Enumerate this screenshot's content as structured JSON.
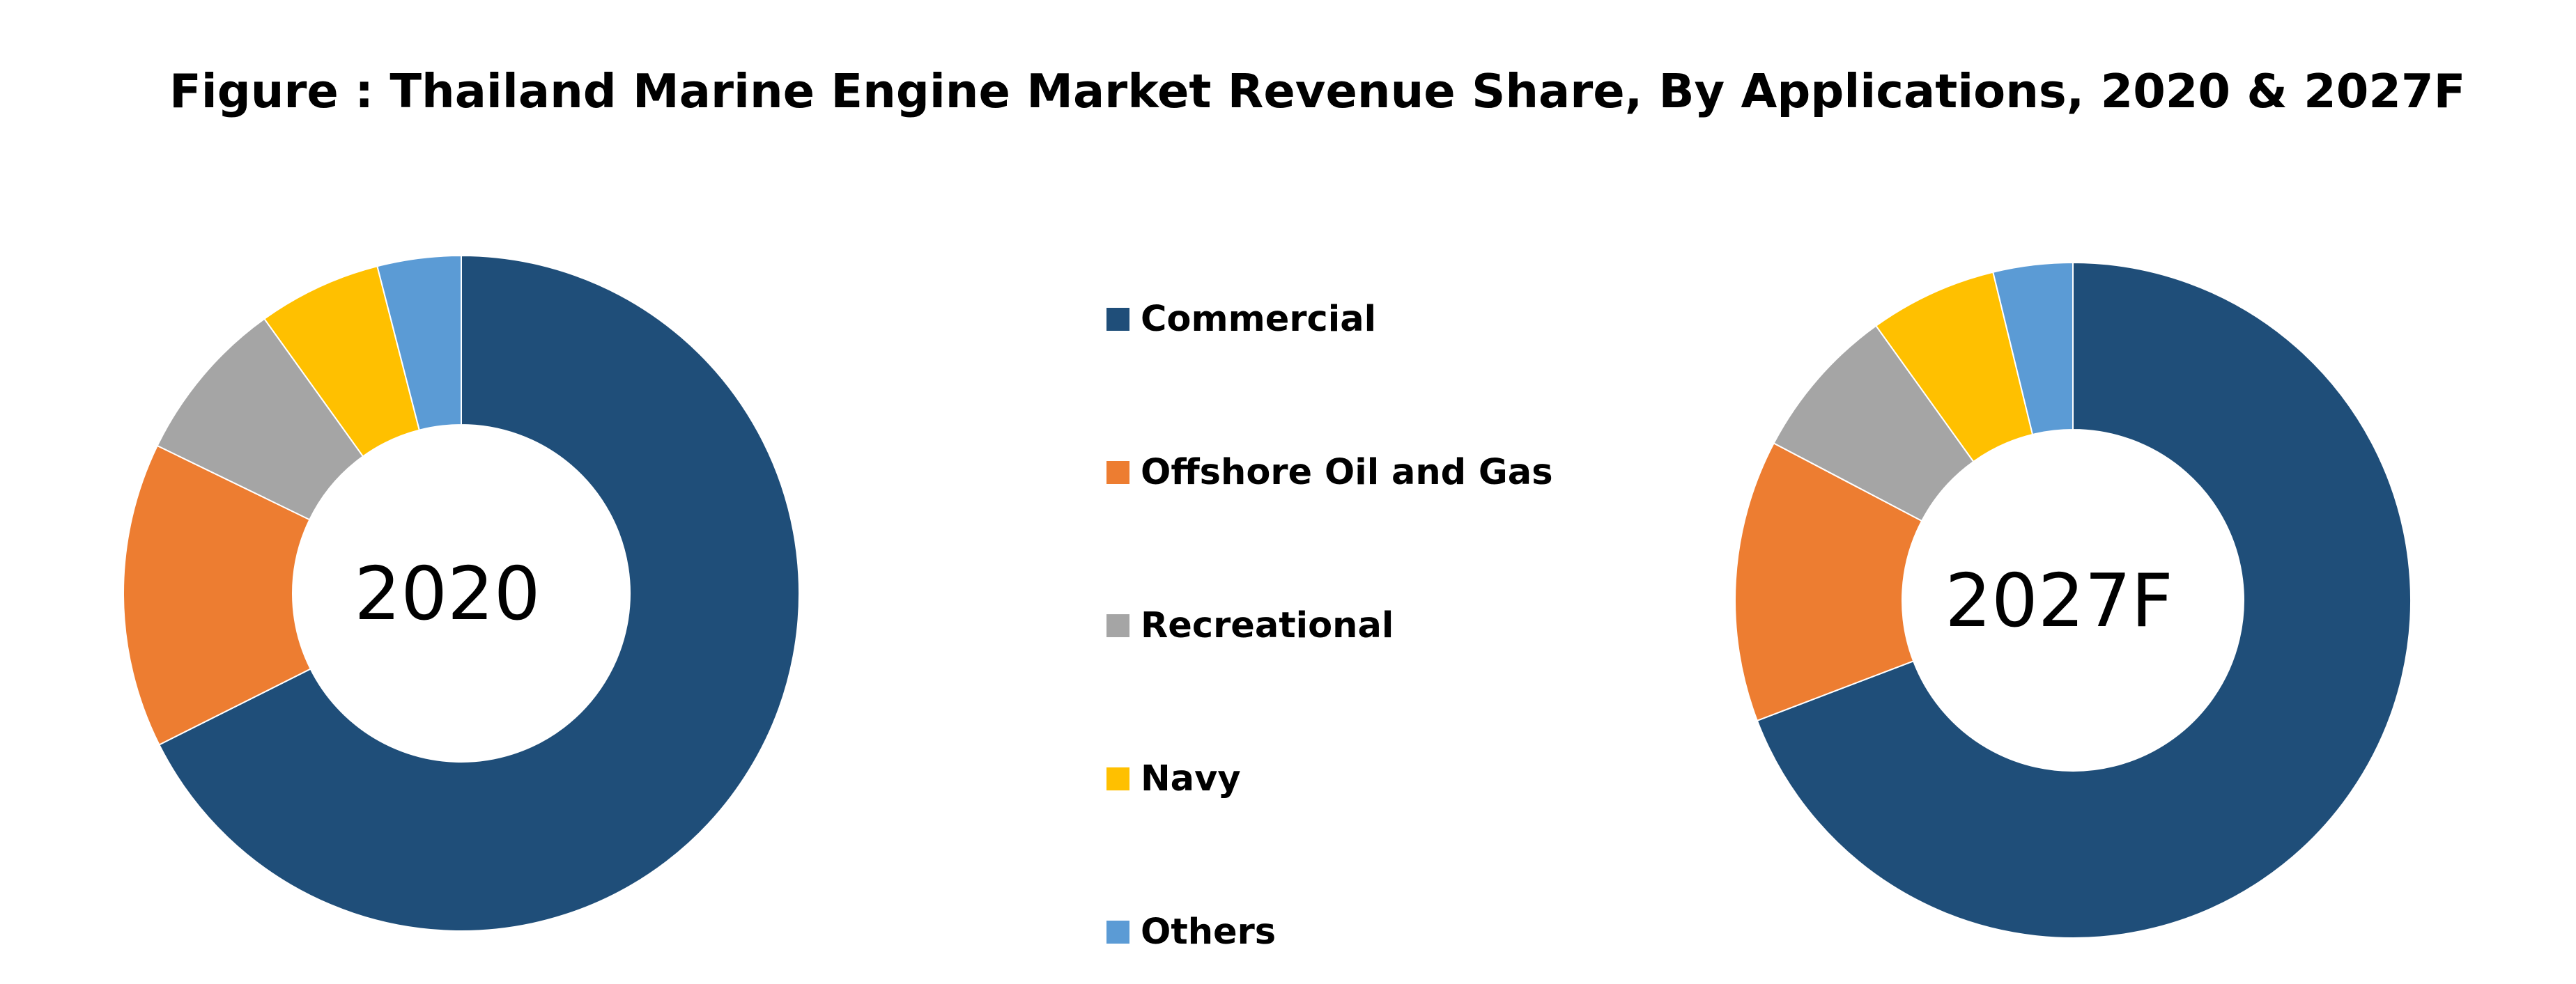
{
  "title": "Figure : Thailand Marine Engine Market Revenue Share, By Applications, 2020 & 2027F",
  "legend": {
    "items": [
      {
        "label": "Commercial",
        "color": "#1F4E79"
      },
      {
        "label": "Offshore Oil and Gas",
        "color": "#ED7D31"
      },
      {
        "label": "Recreational",
        "color": "#A5A5A5"
      },
      {
        "label": "Navy",
        "color": "#FFC000"
      },
      {
        "label": "Others",
        "color": "#5B9BD5"
      }
    ]
  },
  "chart_data": [
    {
      "type": "pie",
      "variant": "donut",
      "center_label": "2020",
      "categories": [
        "Commercial",
        "Offshore Oil and Gas",
        "Recreational",
        "Navy",
        "Others"
      ],
      "values": [
        67.6,
        14.6,
        7.9,
        5.9,
        4.0
      ],
      "colors": [
        "#1F4E79",
        "#ED7D31",
        "#A5A5A5",
        "#FFC000",
        "#5B9BD5"
      ],
      "title": "",
      "legend_position": "center"
    },
    {
      "type": "pie",
      "variant": "donut",
      "center_label": "2027F",
      "categories": [
        "Commercial",
        "Offshore Oil and Gas",
        "Recreational",
        "Navy",
        "Others"
      ],
      "values": [
        69.2,
        13.5,
        7.4,
        6.1,
        3.8
      ],
      "colors": [
        "#1F4E79",
        "#ED7D31",
        "#A5A5A5",
        "#FFC000",
        "#5B9BD5"
      ],
      "title": "",
      "legend_position": "center"
    }
  ]
}
